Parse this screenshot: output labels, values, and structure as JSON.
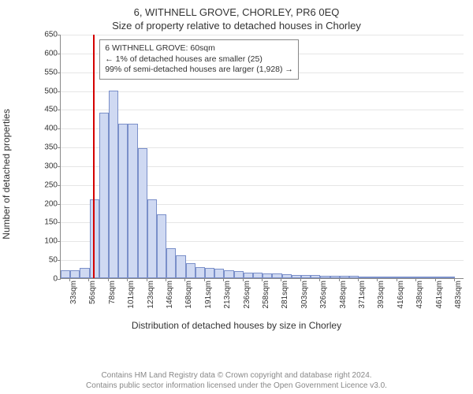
{
  "title_line1": "6, WITHNELL GROVE, CHORLEY, PR6 0EQ",
  "title_line2": "Size of property relative to detached houses in Chorley",
  "ylabel": "Number of detached properties",
  "xlabel": "Distribution of detached houses by size in Chorley",
  "footer_line1": "Contains HM Land Registry data © Crown copyright and database right 2024.",
  "footer_line2": "Contains public sector information licensed under the Open Government Licence v3.0.",
  "chart": {
    "type": "histogram",
    "ymin": 0,
    "ymax": 650,
    "ytick_step": 50,
    "xtick_start": 33,
    "xtick_step": 22.5,
    "xtick_count": 21,
    "xtick_unit": "sqm",
    "bar_fill": "#cfd9f2",
    "bar_stroke": "#7a8fc9",
    "grid_color": "#e6e6e6",
    "axis_color": "#888888",
    "background": "#ffffff",
    "marker_x_value": 60,
    "marker_color": "#d40000",
    "bin_width_value": 11.25,
    "x_min_value": 22,
    "x_max_value": 494,
    "values": [
      20,
      20,
      28,
      210,
      440,
      500,
      410,
      410,
      345,
      210,
      170,
      80,
      60,
      40,
      30,
      28,
      25,
      22,
      18,
      15,
      15,
      12,
      12,
      10,
      8,
      8,
      8,
      6,
      6,
      6,
      6,
      5,
      5,
      5,
      4,
      4,
      4,
      4,
      3,
      3,
      3
    ],
    "annot": {
      "line1": "6 WITHNELL GROVE: 60sqm",
      "line2": "← 1% of detached houses are smaller (25)",
      "line3": "99% of semi-detached houses are larger (1,928) →",
      "border_color": "#888888",
      "bg": "#ffffff",
      "fontsize": 10.5
    }
  }
}
